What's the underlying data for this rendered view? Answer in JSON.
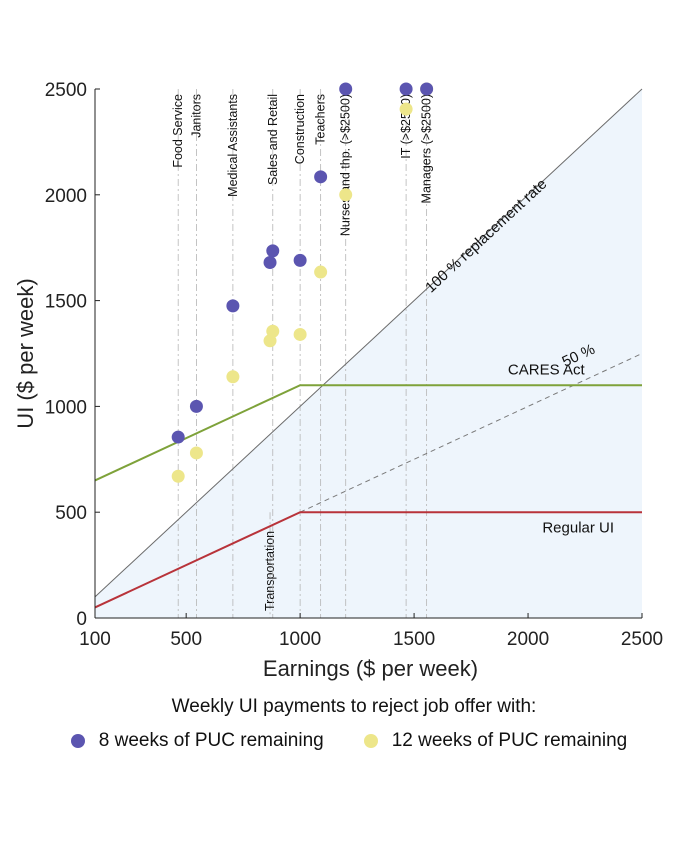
{
  "chart_data": {
    "type": "scatter",
    "title": "",
    "xlabel": "Earnings ($ per week)",
    "ylabel": "UI ($ per week)",
    "xlim": [
      100,
      2500
    ],
    "ylim": [
      0,
      2500
    ],
    "xticks": [
      "100",
      "500",
      "1000",
      "1500",
      "2000",
      "2500"
    ],
    "yticks": [
      "0",
      "500",
      "1000",
      "1500",
      "2000",
      "2500"
    ],
    "grid": false,
    "legend": {
      "placement": "bottom",
      "title": "Weekly UI payments to reject job offer with:",
      "entries": [
        "8 weeks of PUC remaining",
        "12 weeks of PUC remaining"
      ]
    },
    "colors": {
      "pts8": "#5b55b0",
      "pts12": "#ede68a",
      "cares": "#7ea23a",
      "regular": "#b8333a",
      "replacement": "#6b6b6b",
      "fill": "#eef5fc"
    },
    "lines": {
      "replacement_100": {
        "label": "100 % replacement rate",
        "points": [
          [
            100,
            100
          ],
          [
            2500,
            2500
          ]
        ]
      },
      "replacement_50": {
        "label": "50 %",
        "points": [
          [
            1000,
            500
          ],
          [
            2500,
            1250
          ]
        ]
      },
      "cares_act": {
        "label": "CARES Act",
        "points": [
          [
            100,
            650
          ],
          [
            1000,
            1100
          ],
          [
            2500,
            1100
          ]
        ]
      },
      "regular_ui": {
        "label": "Regular UI",
        "points": [
          [
            100,
            50
          ],
          [
            1000,
            500
          ],
          [
            2500,
            500
          ]
        ]
      }
    },
    "occupations": [
      {
        "name": "Food Service",
        "x": 465,
        "y8": 855,
        "y12": 670
      },
      {
        "name": "Janitors",
        "x": 545,
        "y8": 1000,
        "y12": 780
      },
      {
        "name": "Medical Assistants",
        "x": 705,
        "y8": 1475,
        "y12": 1140
      },
      {
        "name": "Transportation",
        "x": 868,
        "y8": 1680,
        "y12": 1310
      },
      {
        "name": "Sales and Retail",
        "x": 880,
        "y8": 1735,
        "y12": 1355
      },
      {
        "name": "Construction",
        "x": 1000,
        "y8": 1690,
        "y12": 1340
      },
      {
        "name": "Teachers",
        "x": 1090,
        "y8": 2085,
        "y12": 1635
      },
      {
        "name": "Nurses and thp. (>$2500)",
        "x": 1200,
        "y8": 2500,
        "y12": 2000
      },
      {
        "name": "IT (>$2500)",
        "x": 1465,
        "y8": 2500,
        "y12": 2405
      },
      {
        "name": "Managers (>$2500)",
        "x": 1555,
        "y8": 2500,
        "y12": 2500
      }
    ]
  }
}
